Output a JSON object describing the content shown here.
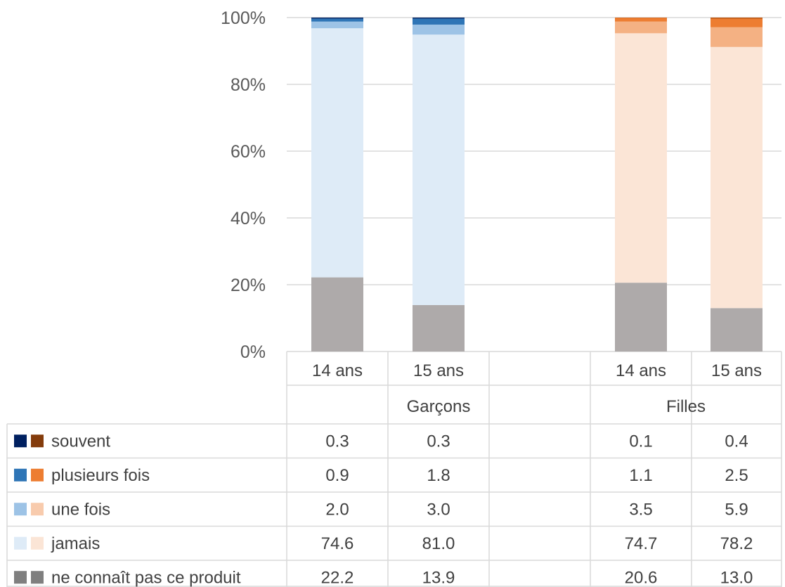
{
  "chart_data": {
    "type": "bar",
    "stacked": "percent",
    "y_ticks": [
      "0%",
      "20%",
      "40%",
      "60%",
      "80%",
      "100%"
    ],
    "ylim": [
      0,
      100
    ],
    "grid": true,
    "groups": [
      {
        "label": "Garçons",
        "categories": [
          "14 ans",
          "15 ans"
        ]
      },
      {
        "label": "Filles",
        "categories": [
          "14 ans",
          "15 ans"
        ]
      }
    ],
    "series": [
      {
        "name": "ne connaît pas ce produit",
        "boys_color": "#7f7f7f",
        "girls_color": "#7f7f7f",
        "bar_colors": [
          "#aeaaaa",
          "#aeaaaa"
        ],
        "values": [
          [
            "22.2",
            "13.9"
          ],
          [
            "20.6",
            "13.0"
          ]
        ]
      },
      {
        "name": "jamais",
        "boys_color": "#deebf7",
        "girls_color": "#fbe5d6",
        "bar_colors": [
          "#deebf7",
          "#fbe5d6"
        ],
        "values": [
          [
            "74.6",
            "81.0"
          ],
          [
            "74.7",
            "78.2"
          ]
        ]
      },
      {
        "name": "une fois",
        "boys_color": "#9dc3e6",
        "girls_color": "#f8cbad",
        "bar_colors": [
          "#9dc3e6",
          "#f4b183"
        ],
        "values": [
          [
            "2.0",
            "3.0"
          ],
          [
            "3.5",
            "5.9"
          ]
        ]
      },
      {
        "name": "plusieurs fois",
        "boys_color": "#2e75b6",
        "girls_color": "#ed7d31",
        "bar_colors": [
          "#2e75b6",
          "#ed7d31"
        ],
        "values": [
          [
            "0.9",
            "1.8"
          ],
          [
            "1.1",
            "2.5"
          ]
        ]
      },
      {
        "name": "souvent",
        "boys_color": "#002060",
        "girls_color": "#843c0c",
        "bar_colors": [
          "#002060",
          "#c55a11"
        ],
        "values": [
          [
            "0.3",
            "0.3"
          ],
          [
            "0.1",
            "0.4"
          ]
        ]
      }
    ],
    "table_row_order": [
      "souvent",
      "plusieurs fois",
      "une fois",
      "jamais",
      "ne connaît pas ce produit"
    ]
  }
}
